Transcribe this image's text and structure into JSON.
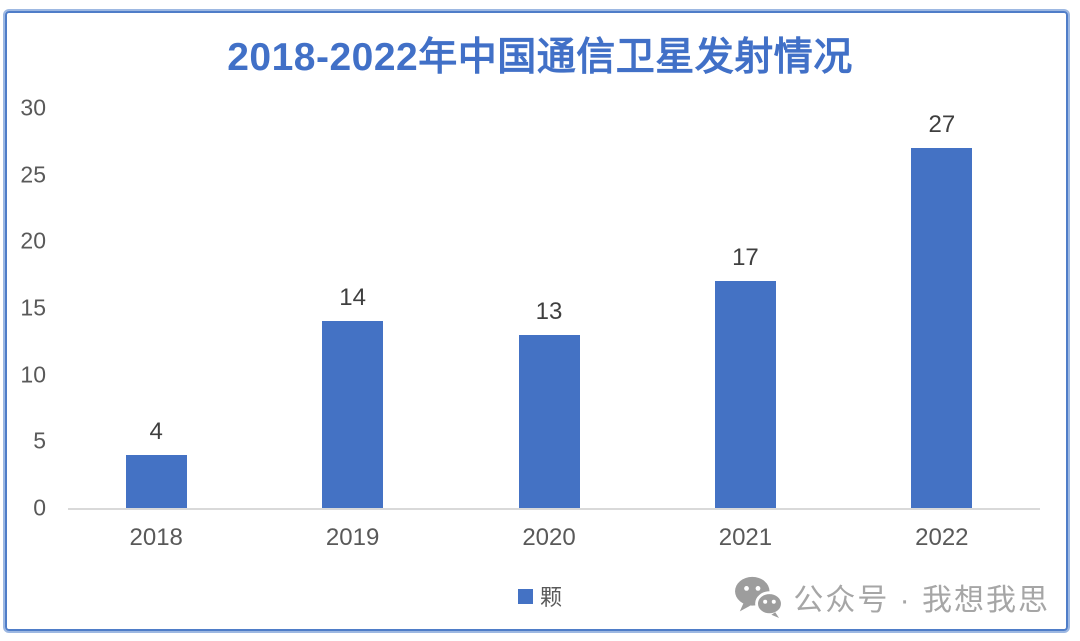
{
  "chart_data": {
    "type": "bar",
    "title": "2018-2022年中国通信卫星发射情况",
    "categories": [
      "2018",
      "2019",
      "2020",
      "2021",
      "2022"
    ],
    "values": [
      4,
      14,
      13,
      17,
      27
    ],
    "series_name": "颗",
    "unit": "颗",
    "xlabel": "",
    "ylabel": "",
    "ylim": [
      0,
      30
    ],
    "yticks": [
      0,
      5,
      10,
      15,
      20,
      25,
      30
    ],
    "grid": false,
    "legend_position": "bottom",
    "value_labels_shown": true,
    "bar_color": "#4472C4"
  },
  "legend": {
    "label": "颗",
    "swatch_color": "#4472C4"
  },
  "watermark": {
    "icon": "wechat-icon",
    "text": "公众号 · 我想我思",
    "color": "#a6a6a6"
  },
  "colors": {
    "title": "#4170c7",
    "axis_text": "#595959",
    "value_text": "#3f3f3f",
    "axis_line": "#d9d9d9",
    "page_border": "#4f7dc8",
    "background": "#ffffff"
  }
}
